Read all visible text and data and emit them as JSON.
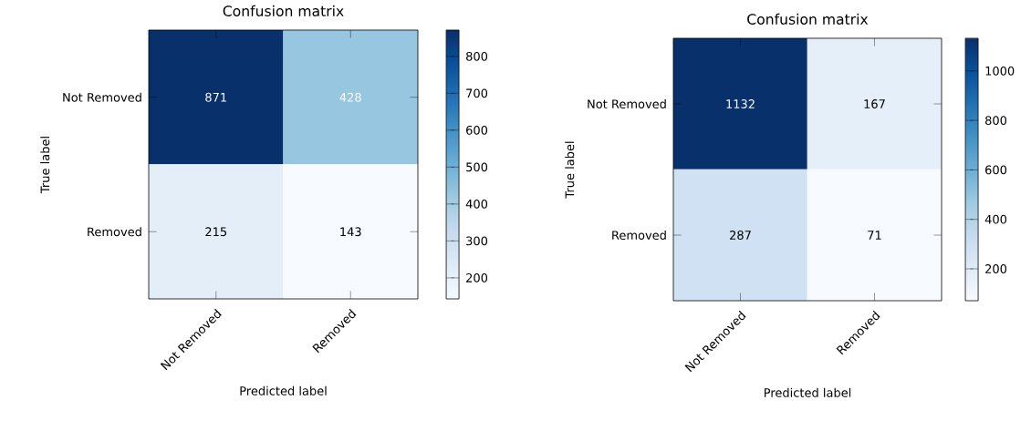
{
  "chart_data": [
    {
      "type": "heatmap",
      "title": "Confusion matrix",
      "xlabel": "Predicted label",
      "ylabel": "True label",
      "categories": [
        "Not Removed",
        "Removed"
      ],
      "y_categories": [
        "Not Removed",
        "Removed"
      ],
      "cells": [
        [
          871,
          428
        ],
        [
          215,
          143
        ]
      ],
      "clim": [
        143,
        871
      ],
      "cticks": [
        200,
        300,
        400,
        500,
        600,
        700,
        800
      ],
      "data_labels": true
    },
    {
      "type": "heatmap",
      "title": "Confusion matrix",
      "xlabel": "Predicted label",
      "ylabel": "True label",
      "categories": [
        "Not Removed",
        "Removed"
      ],
      "y_categories": [
        "Not Removed",
        "Removed"
      ],
      "cells": [
        [
          1132,
          167
        ],
        [
          287,
          71
        ]
      ],
      "clim": [
        71,
        1132
      ],
      "cticks": [
        200,
        400,
        600,
        800,
        1000
      ],
      "data_labels": true
    }
  ]
}
